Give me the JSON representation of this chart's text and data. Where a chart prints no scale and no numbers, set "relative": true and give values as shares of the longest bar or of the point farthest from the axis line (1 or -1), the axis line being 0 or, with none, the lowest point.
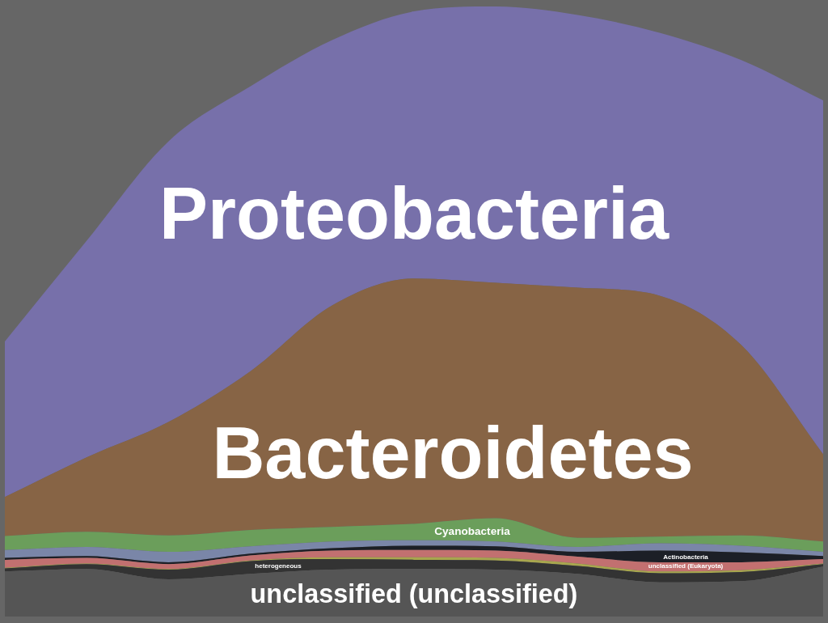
{
  "chart_data": {
    "type": "area",
    "stacked": true,
    "relative": true,
    "categories": [
      null,
      null,
      null,
      null,
      null,
      null,
      null,
      null,
      null,
      null,
      null
    ],
    "series": [
      {
        "name": "unclassified (unclassified)",
        "color": "#555555",
        "values": [
          0.074,
          0.078,
          0.061,
          0.07,
          0.077,
          0.078,
          0.077,
          0.07,
          0.056,
          0.058,
          0.082
        ]
      },
      {
        "name": "heterogeneous",
        "color": "#333333",
        "values": [
          0.005,
          0.008,
          0.016,
          0.021,
          0.017,
          0.015,
          0.015,
          0.013,
          0.015,
          0.015,
          0.004
        ]
      },
      {
        "color": "#a8a64e",
        "values": [
          0.001,
          0.001,
          0.001,
          0.001,
          0.003,
          0.004,
          0.004,
          0.004,
          0.003,
          0.003,
          0.001
        ]
      },
      {
        "name": "unclassified (Eukaryota)",
        "color": "#c27070",
        "values": [
          0.013,
          0.009,
          0.008,
          0.008,
          0.011,
          0.012,
          0.012,
          0.011,
          0.015,
          0.013,
          0.007
        ]
      },
      {
        "name": "Actinobacteria",
        "color": "#1c1f26",
        "values": [
          0.003,
          0.003,
          0.003,
          0.003,
          0.004,
          0.007,
          0.007,
          0.008,
          0.019,
          0.016,
          0.005
        ]
      },
      {
        "color": "#7a86a8",
        "values": [
          0.013,
          0.015,
          0.017,
          0.012,
          0.011,
          0.009,
          0.008,
          0.008,
          0.012,
          0.011,
          0.007
        ]
      },
      {
        "name": "Cyanobacteria",
        "color": "#6b9e5b",
        "values": [
          0.023,
          0.025,
          0.027,
          0.027,
          0.024,
          0.027,
          0.038,
          0.015,
          0.011,
          0.017,
          0.017
        ]
      },
      {
        "name": "Bacteroidetes",
        "color": "#876445",
        "values": [
          0.064,
          0.122,
          0.186,
          0.26,
          0.363,
          0.402,
          0.386,
          0.41,
          0.395,
          0.312,
          0.143
        ]
      },
      {
        "name": "Proteobacteria",
        "color": "#7770aa",
        "values": [
          0.255,
          0.355,
          0.46,
          0.467,
          0.435,
          0.438,
          0.453,
          0.447,
          0.431,
          0.467,
          0.58
        ]
      }
    ]
  }
}
